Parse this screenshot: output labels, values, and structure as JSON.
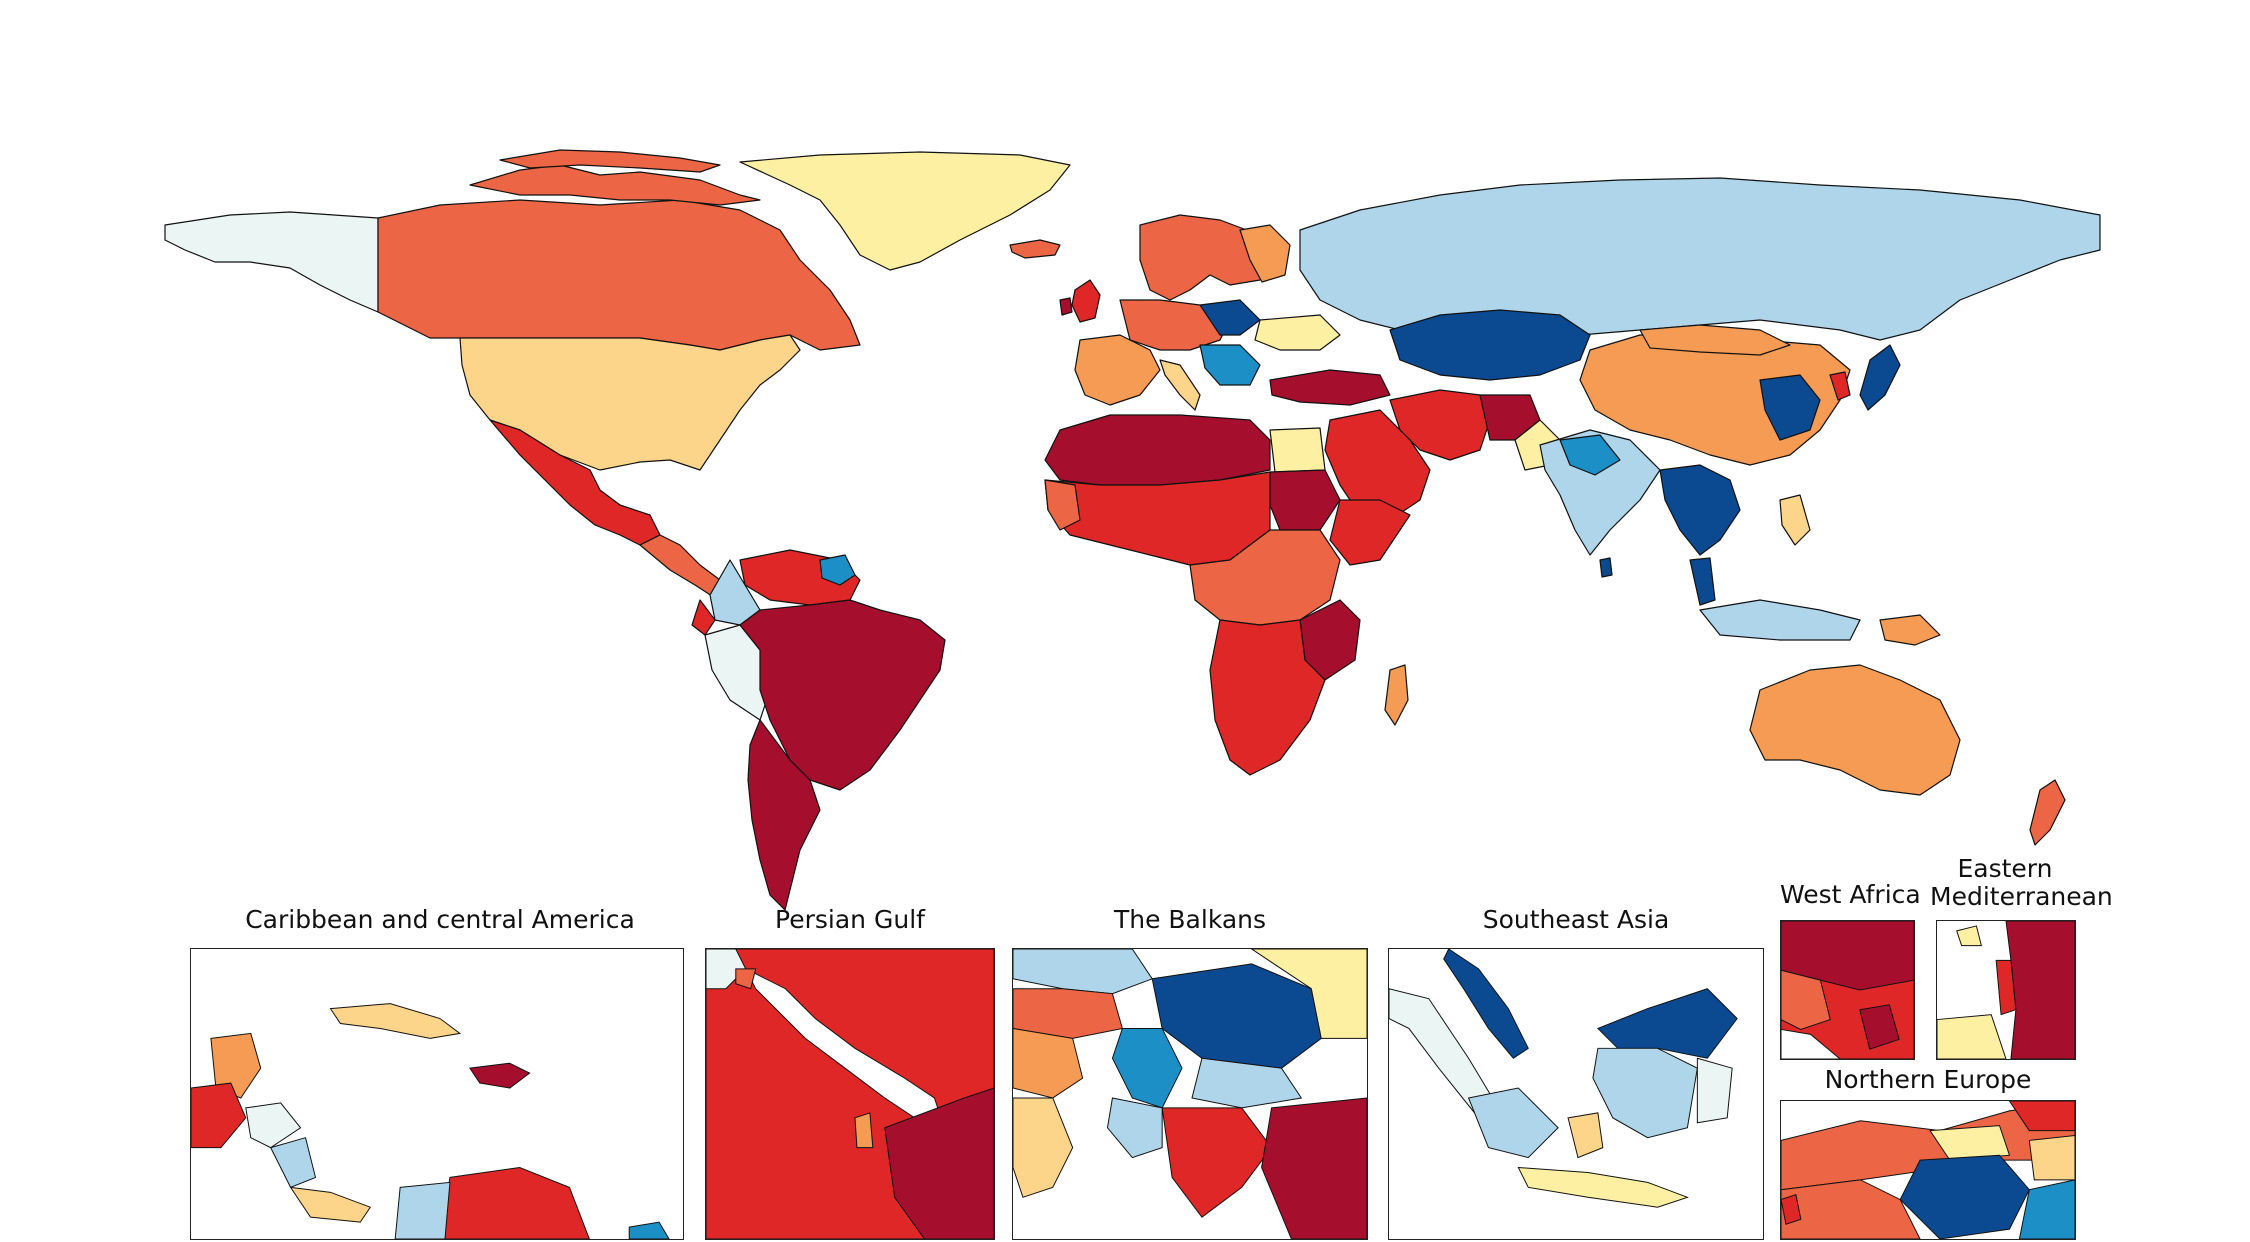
{
  "palette": {
    "c1": "#a50f2d",
    "c2": "#e02727",
    "c3": "#ec6545",
    "c4": "#f59b54",
    "c5": "#fdd58a",
    "c6": "#fdf0a3",
    "c7": "#eaf5f4",
    "c8": "#aed5ea",
    "c9": "#1b8fc6",
    "c10": "#0b4a91",
    "ocean": "#ffffff",
    "border": "#111111"
  },
  "insets": [
    {
      "id": "caribbean",
      "title": "Caribbean and central America"
    },
    {
      "id": "gulf",
      "title": "Persian Gulf"
    },
    {
      "id": "balkans",
      "title": "The Balkans"
    },
    {
      "id": "seasia",
      "title": "Southeast Asia"
    },
    {
      "id": "westafrica",
      "title": "West Africa"
    },
    {
      "id": "eastmed",
      "title": "Eastern Mediterranean"
    },
    {
      "id": "northeurope",
      "title": "Northern Europe"
    }
  ]
}
